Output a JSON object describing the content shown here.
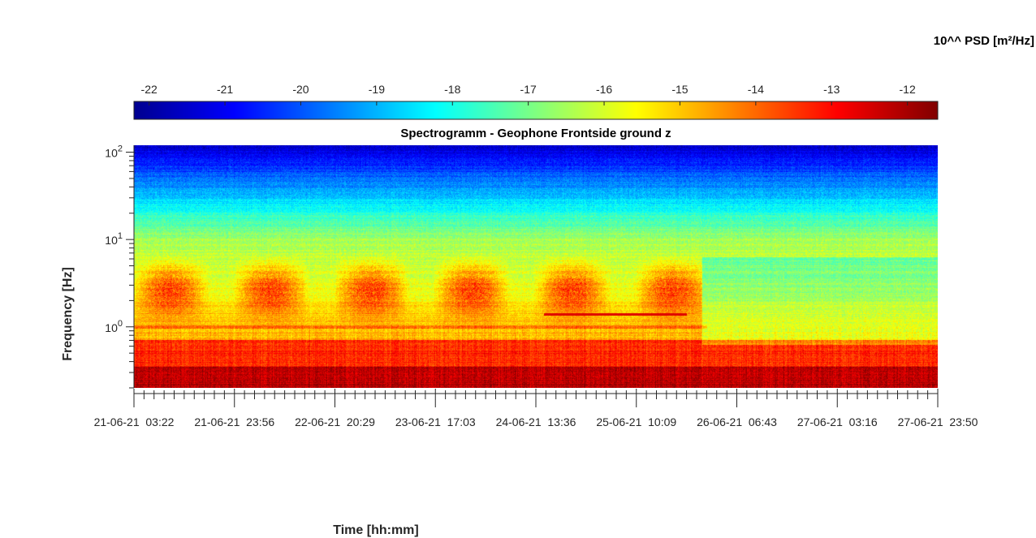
{
  "chart_data": {
    "type": "heatmap",
    "title": "Spectrogramm - Geophone Frontside ground z",
    "xlabel": "Time [hh:mm]",
    "ylabel": "Frequency [Hz]",
    "colorbar_label": "10^^ PSD [m²/Hz]",
    "colormap": "jet",
    "clim": [
      -22.2,
      -11.6
    ],
    "colorbar_ticks": [
      -22,
      -21,
      -20,
      -19,
      -18,
      -17,
      -16,
      -15,
      -14,
      -13,
      -12
    ],
    "y_scale": "log",
    "ylim": [
      0.2,
      120
    ],
    "y_ticks": [
      {
        "value": 1,
        "label": "10",
        "exp": "0"
      },
      {
        "value": 10,
        "label": "10",
        "exp": "1"
      },
      {
        "value": 100,
        "label": "10",
        "exp": "2"
      }
    ],
    "x_tick_labels": [
      "21-06-21  03:22",
      "21-06-21  23:56",
      "22-06-21  20:29",
      "23-06-21  17:03",
      "24-06-21  13:36",
      "25-06-21  10:09",
      "26-06-21  06:43",
      "27-06-21  03:16",
      "27-06-21  23:50"
    ],
    "features": {
      "daily_activity_band_hz": [
        1.5,
        5
      ],
      "daily_activity_log10_psd": -14.5,
      "background_high_freq_log10_psd": -21,
      "background_low_freq_log10_psd": -12.5,
      "constant_line": {
        "freq_hz": 1.4,
        "start_tick": 4.08,
        "end_tick": 5.5
      }
    }
  },
  "colors": {
    "background": "#ffffff",
    "axis": "#262626"
  }
}
